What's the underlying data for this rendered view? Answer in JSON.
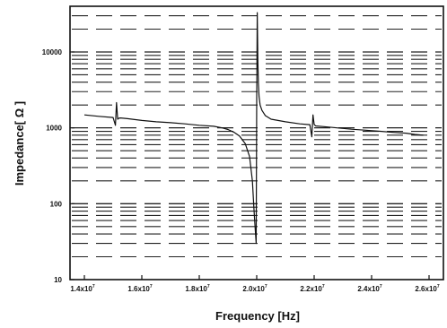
{
  "chart_data": {
    "type": "line",
    "title": "",
    "xlabel": "Frequency [Hz]",
    "ylabel": "Impedance[ Ω ]",
    "xscale": "linear",
    "yscale": "log",
    "xlim": [
      13500000,
      26500000
    ],
    "ylim": [
      10,
      40000
    ],
    "grid": true,
    "x_ticks": [
      14000000,
      16000000,
      18000000,
      20000000,
      22000000,
      24000000,
      26000000
    ],
    "x_tick_labels": [
      {
        "base": "1.4x10",
        "exp": "7"
      },
      {
        "base": "1.6x10",
        "exp": "7"
      },
      {
        "base": "1.8x10",
        "exp": "7"
      },
      {
        "base": "2.0x10",
        "exp": "7"
      },
      {
        "base": "2.2x10",
        "exp": "7"
      },
      {
        "base": "2.4x10",
        "exp": "7"
      },
      {
        "base": "2.6x10",
        "exp": "7"
      }
    ],
    "y_ticks": [
      10,
      100,
      1000,
      10000
    ],
    "y_tick_labels": [
      "10",
      "100",
      "1000",
      "10000"
    ],
    "series": [
      {
        "color": "#111111",
        "x": [
          14000000,
          14500000,
          15000000,
          15080000,
          15120000,
          15160000,
          15200000,
          15260000,
          15500000,
          16000000,
          16500000,
          17000000,
          17500000,
          18000000,
          18500000,
          18800000,
          19000000,
          19200000,
          19400000,
          19600000,
          19750000,
          19850000,
          19900000,
          19950000,
          19980000,
          20000000,
          20020000,
          20040000,
          20060000,
          20080000,
          20120000,
          20180000,
          20300000,
          20500000,
          21000000,
          21500000,
          21850000,
          21920000,
          21960000,
          22000000,
          22050000,
          22300000,
          22800000,
          23300000,
          23800000,
          24300000,
          24800000,
          25200000,
          25500000,
          25800000
        ],
        "y": [
          1480,
          1420,
          1370,
          1080,
          2150,
          1300,
          1340,
          1350,
          1320,
          1250,
          1200,
          1170,
          1130,
          1080,
          1050,
          1000,
          950,
          880,
          780,
          620,
          420,
          200,
          90,
          45,
          30,
          2500,
          33000,
          7500,
          3800,
          2600,
          2000,
          1700,
          1450,
          1300,
          1200,
          1130,
          1100,
          760,
          1480,
          1110,
          1060,
          1040,
          1000,
          960,
          930,
          900,
          870,
          850,
          820,
          800
        ]
      }
    ]
  }
}
